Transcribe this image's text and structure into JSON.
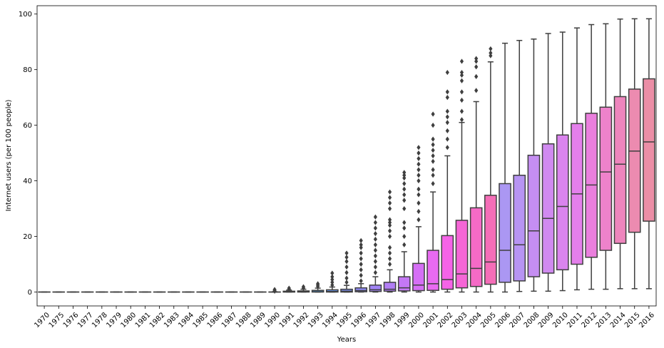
{
  "chart_data": {
    "type": "boxplot",
    "xlabel": "Years",
    "ylabel": "Internet users (per 100 people)",
    "ylim": [
      -5,
      103
    ],
    "yticks": [
      0,
      20,
      40,
      60,
      80,
      100
    ],
    "grid": false,
    "categories": [
      "1970",
      "1975",
      "1976",
      "1977",
      "1978",
      "1979",
      "1980",
      "1981",
      "1982",
      "1983",
      "1984",
      "1985",
      "1986",
      "1987",
      "1988",
      "1989",
      "1990",
      "1991",
      "1992",
      "1993",
      "1994",
      "1995",
      "1996",
      "1997",
      "1998",
      "1999",
      "2000",
      "2001",
      "2002",
      "2003",
      "2004",
      "2005",
      "2006",
      "2007",
      "2008",
      "2009",
      "2010",
      "2011",
      "2012",
      "2013",
      "2014",
      "2015",
      "2016"
    ],
    "boxes": [
      {
        "q1": 0,
        "median": 0,
        "q3": 0,
        "whislo": 0,
        "whishi": 0,
        "fliers": [],
        "color": "#f77189"
      },
      {
        "q1": 0,
        "median": 0,
        "q3": 0,
        "whislo": 0,
        "whishi": 0,
        "fliers": [],
        "color": "#f7754f"
      },
      {
        "q1": 0,
        "median": 0,
        "q3": 0,
        "whislo": 0,
        "whishi": 0,
        "fliers": [],
        "color": "#e88032"
      },
      {
        "q1": 0,
        "median": 0,
        "q3": 0,
        "whislo": 0,
        "whishi": 0,
        "fliers": [],
        "color": "#d58b31"
      },
      {
        "q1": 0,
        "median": 0,
        "q3": 0,
        "whislo": 0,
        "whishi": 0,
        "fliers": [],
        "color": "#c39532"
      },
      {
        "q1": 0,
        "median": 0,
        "q3": 0,
        "whislo": 0,
        "whishi": 0,
        "fliers": [],
        "color": "#b39c31"
      },
      {
        "q1": 0,
        "median": 0,
        "q3": 0,
        "whislo": 0,
        "whishi": 0,
        "fliers": [],
        "color": "#a3a131"
      },
      {
        "q1": 0,
        "median": 0,
        "q3": 0,
        "whislo": 0,
        "whishi": 0,
        "fliers": [],
        "color": "#91a731"
      },
      {
        "q1": 0,
        "median": 0,
        "q3": 0,
        "whislo": 0,
        "whishi": 0,
        "fliers": [],
        "color": "#78ac31"
      },
      {
        "q1": 0,
        "median": 0,
        "q3": 0,
        "whislo": 0,
        "whishi": 0,
        "fliers": [],
        "color": "#4fb031"
      },
      {
        "q1": 0,
        "median": 0,
        "q3": 0,
        "whislo": 0,
        "whishi": 0,
        "fliers": [],
        "color": "#33b05c"
      },
      {
        "q1": 0,
        "median": 0,
        "q3": 0,
        "whislo": 0,
        "whishi": 0,
        "fliers": [],
        "color": "#35ae7b"
      },
      {
        "q1": 0,
        "median": 0,
        "q3": 0,
        "whislo": 0,
        "whishi": 0,
        "fliers": [],
        "color": "#36ad8e"
      },
      {
        "q1": 0,
        "median": 0,
        "q3": 0,
        "whislo": 0,
        "whishi": 0,
        "fliers": [],
        "color": "#37ab9b"
      },
      {
        "q1": 0,
        "median": 0,
        "q3": 0,
        "whislo": 0,
        "whishi": 0,
        "fliers": [],
        "color": "#38aaa6"
      },
      {
        "q1": 0,
        "median": 0,
        "q3": 0,
        "whislo": 0,
        "whishi": 0,
        "fliers": [],
        "color": "#39a9b1"
      },
      {
        "q1": 0,
        "median": 0,
        "q3": 0,
        "whislo": 0,
        "whishi": 0.1,
        "fliers": [
          0.3,
          0.6,
          0.9
        ],
        "color": "#3aa7bd"
      },
      {
        "q1": 0,
        "median": 0.05,
        "q3": 0.3,
        "whislo": 0,
        "whishi": 0.7,
        "fliers": [
          1.0,
          1.4
        ],
        "color": "#3ba5ca"
      },
      {
        "q1": 0,
        "median": 0.1,
        "q3": 0.4,
        "whislo": 0,
        "whishi": 1.0,
        "fliers": [
          1.4,
          1.9
        ],
        "color": "#3da3db"
      },
      {
        "q1": 0,
        "median": 0.1,
        "q3": 0.6,
        "whislo": 0,
        "whishi": 1.4,
        "fliers": [
          2.0,
          2.5,
          3.0
        ],
        "color": "#4c9de9"
      },
      {
        "q1": 0,
        "median": 0.2,
        "q3": 0.8,
        "whislo": 0,
        "whishi": 1.8,
        "fliers": [
          2.5,
          3.5,
          4.5,
          5.5,
          6.8
        ],
        "color": "#6797ef"
      },
      {
        "q1": 0,
        "median": 0.3,
        "q3": 1.0,
        "whislo": 0,
        "whishi": 2.4,
        "fliers": [
          3.5,
          5,
          7,
          9,
          11,
          12.5,
          14
        ],
        "color": "#7c91f3"
      },
      {
        "q1": 0.1,
        "median": 0.5,
        "q3": 1.5,
        "whislo": 0,
        "whishi": 3.0,
        "fliers": [
          4,
          6,
          8,
          10,
          12,
          14,
          16,
          17,
          18.5
        ],
        "color": "#8f8af5"
      },
      {
        "q1": 0.2,
        "median": 0.8,
        "q3": 2.5,
        "whislo": 0,
        "whishi": 5.5,
        "fliers": [
          7,
          9,
          11,
          13,
          15,
          17,
          19,
          21,
          23,
          25,
          27
        ],
        "color": "#a184f5"
      },
      {
        "q1": 0.3,
        "median": 1.0,
        "q3": 3.5,
        "whislo": 0,
        "whishi": 8.0,
        "fliers": [
          10,
          12,
          14,
          16,
          20,
          22,
          24,
          25,
          26,
          30,
          32,
          34,
          36
        ],
        "color": "#b27ef5"
      },
      {
        "q1": 0.4,
        "median": 1.5,
        "q3": 5.5,
        "whislo": 0,
        "whishi": 14.5,
        "fliers": [
          17,
          20,
          23,
          25,
          30,
          33,
          35,
          37,
          39,
          41,
          42,
          43
        ],
        "color": "#c478f5"
      },
      {
        "q1": 0.5,
        "median": 2.5,
        "q3": 10.3,
        "whislo": 0,
        "whishi": 23.5,
        "fliers": [
          26,
          29,
          32,
          35,
          37,
          40,
          42,
          44,
          46,
          48,
          50,
          52
        ],
        "color": "#d56ff5"
      },
      {
        "q1": 0.6,
        "median": 3.0,
        "q3": 15.0,
        "whislo": 0,
        "whishi": 36.0,
        "fliers": [
          39,
          42,
          44,
          47,
          49,
          51,
          53,
          55,
          60,
          64
        ],
        "color": "#e86af1"
      },
      {
        "q1": 1.0,
        "median": 4.5,
        "q3": 20.3,
        "whislo": 0,
        "whishi": 49.0,
        "fliers": [
          52,
          55,
          58,
          61,
          63,
          65,
          70,
          72,
          79
        ],
        "color": "#f563e7"
      },
      {
        "q1": 1.5,
        "median": 6.5,
        "q3": 25.8,
        "whislo": 0,
        "whishi": 61.0,
        "fliers": [
          62,
          65,
          69,
          72,
          76,
          78,
          79,
          83
        ],
        "color": "#f566d6"
      },
      {
        "q1": 2.0,
        "median": 8.5,
        "q3": 30.3,
        "whislo": 0,
        "whishi": 68.5,
        "fliers": [
          72.5,
          77.5,
          81,
          83,
          84
        ],
        "color": "#f56ac6"
      },
      {
        "q1": 2.8,
        "median": 10.8,
        "q3": 34.8,
        "whislo": 0,
        "whishi": 82.8,
        "fliers": [
          85,
          86,
          87.5
        ],
        "color": "#f56eb8"
      },
      {
        "q1": 3.5,
        "median": 15.0,
        "q3": 39.0,
        "whislo": 0,
        "whishi": 89.5,
        "fliers": [],
        "color": "#ab97f3"
      },
      {
        "q1": 4.0,
        "median": 17.0,
        "q3": 42.0,
        "whislo": 0.2,
        "whishi": 90.5,
        "fliers": [],
        "color": "#b794f3"
      },
      {
        "q1": 5.5,
        "median": 22.0,
        "q3": 49.2,
        "whislo": 0.3,
        "whishi": 91.0,
        "fliers": [],
        "color": "#c58ef2"
      },
      {
        "q1": 6.8,
        "median": 26.5,
        "q3": 53.3,
        "whislo": 0.3,
        "whishi": 93.0,
        "fliers": [],
        "color": "#d08af0"
      },
      {
        "q1": 8.0,
        "median": 30.8,
        "q3": 56.5,
        "whislo": 0.5,
        "whishi": 93.5,
        "fliers": [],
        "color": "#da84ee"
      },
      {
        "q1": 10.0,
        "median": 35.3,
        "q3": 60.6,
        "whislo": 0.8,
        "whishi": 95.0,
        "fliers": [],
        "color": "#e47feb"
      },
      {
        "q1": 12.5,
        "median": 38.5,
        "q3": 64.3,
        "whislo": 1.0,
        "whishi": 96.2,
        "fliers": [],
        "color": "#ea7fdd"
      },
      {
        "q1": 15.0,
        "median": 43.2,
        "q3": 66.5,
        "whislo": 1.0,
        "whishi": 96.5,
        "fliers": [],
        "color": "#ee82cb"
      },
      {
        "q1": 17.5,
        "median": 46.0,
        "q3": 70.3,
        "whislo": 1.2,
        "whishi": 98.2,
        "fliers": [],
        "color": "#ee85bd"
      },
      {
        "q1": 21.5,
        "median": 50.7,
        "q3": 73.0,
        "whislo": 1.2,
        "whishi": 98.3,
        "fliers": [],
        "color": "#ec8bb0"
      },
      {
        "q1": 25.5,
        "median": 54.0,
        "q3": 76.7,
        "whislo": 1.2,
        "whishi": 98.3,
        "fliers": [],
        "color": "#eb8ea6"
      }
    ]
  }
}
